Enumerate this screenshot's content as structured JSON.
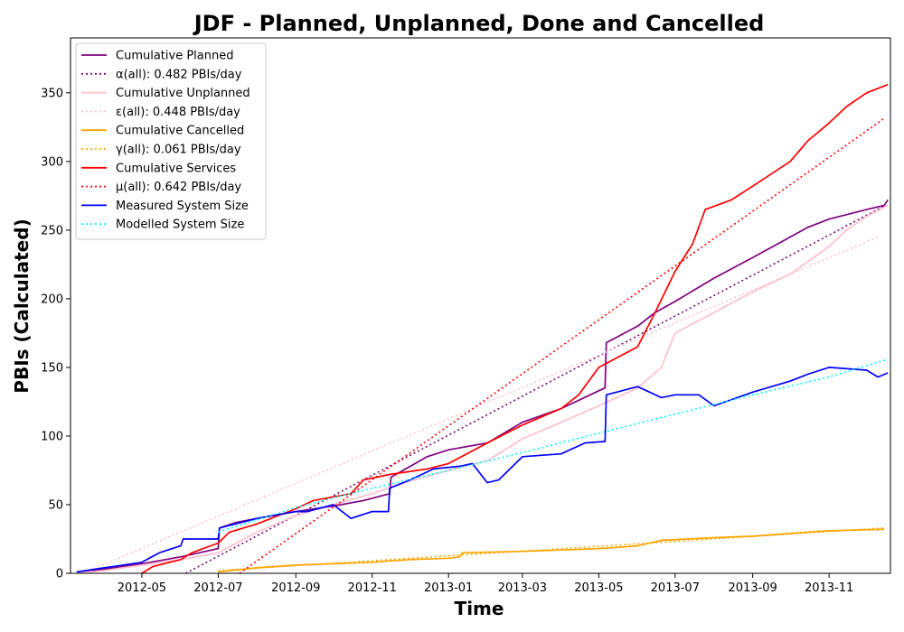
{
  "chart_data": {
    "type": "line",
    "title": "JDF - Planned, Unplanned, Done  and Cancelled",
    "xlabel": "Time",
    "ylabel": "PBIs (Calculated)",
    "xlim": [
      "2012-03-05",
      "2013-12-20"
    ],
    "ylim": [
      0,
      390
    ],
    "x_ticks": [
      "2012-05",
      "2012-07",
      "2012-09",
      "2012-11",
      "2013-01",
      "2013-03",
      "2013-05",
      "2013-07",
      "2013-09",
      "2013-11"
    ],
    "y_ticks": [
      0,
      50,
      100,
      150,
      200,
      250,
      300,
      350
    ],
    "grid": false,
    "legend_position": "top-left",
    "series": [
      {
        "name": "Cumulative Planned",
        "color": "#800080",
        "style": "solid",
        "points": [
          [
            "2012-03-10",
            1
          ],
          [
            "2012-04-01",
            3
          ],
          [
            "2012-05-01",
            7
          ],
          [
            "2012-06-01",
            12
          ],
          [
            "2012-07-01",
            18
          ],
          [
            "2012-07-02",
            33
          ],
          [
            "2012-07-15",
            37
          ],
          [
            "2012-08-01",
            40
          ],
          [
            "2012-09-01",
            45
          ],
          [
            "2012-10-01",
            49
          ],
          [
            "2012-10-25",
            53
          ],
          [
            "2012-11-15",
            58
          ],
          [
            "2012-11-16",
            70
          ],
          [
            "2012-12-15",
            85
          ],
          [
            "2013-01-01",
            90
          ],
          [
            "2013-02-01",
            95
          ],
          [
            "2013-03-01",
            110
          ],
          [
            "2013-04-01",
            120
          ],
          [
            "2013-05-01",
            133
          ],
          [
            "2013-05-06",
            135
          ],
          [
            "2013-05-07",
            168
          ],
          [
            "2013-06-01",
            180
          ],
          [
            "2013-06-15",
            190
          ],
          [
            "2013-07-01",
            198
          ],
          [
            "2013-08-01",
            215
          ],
          [
            "2013-09-01",
            230
          ],
          [
            "2013-10-01",
            245
          ],
          [
            "2013-10-15",
            252
          ],
          [
            "2013-11-01",
            258
          ],
          [
            "2013-12-01",
            265
          ],
          [
            "2013-12-15",
            268
          ],
          [
            "2013-12-18",
            272
          ]
        ]
      },
      {
        "name": "α(all): 0.482 PBIs/day",
        "color": "#800080",
        "style": "dotted",
        "points": [
          [
            "2012-06-05",
            0
          ],
          [
            "2013-12-16",
            268
          ]
        ]
      },
      {
        "name": "Cumulative Unplanned",
        "color": "#ffc0cb",
        "style": "solid",
        "points": [
          [
            "2012-03-10",
            0
          ],
          [
            "2012-04-01",
            2
          ],
          [
            "2012-05-01",
            6
          ],
          [
            "2012-06-01",
            10
          ],
          [
            "2012-07-01",
            15
          ],
          [
            "2012-08-01",
            30
          ],
          [
            "2012-09-01",
            42
          ],
          [
            "2012-10-01",
            50
          ],
          [
            "2012-11-01",
            58
          ],
          [
            "2012-12-01",
            67
          ],
          [
            "2013-01-01",
            75
          ],
          [
            "2013-02-01",
            82
          ],
          [
            "2013-03-01",
            98
          ],
          [
            "2013-04-01",
            110
          ],
          [
            "2013-05-01",
            122
          ],
          [
            "2013-06-01",
            135
          ],
          [
            "2013-06-20",
            150
          ],
          [
            "2013-07-01",
            175
          ],
          [
            "2013-08-01",
            190
          ],
          [
            "2013-09-01",
            205
          ],
          [
            "2013-10-01",
            218
          ],
          [
            "2013-11-01",
            238
          ],
          [
            "2013-11-15",
            250
          ],
          [
            "2013-12-01",
            260
          ],
          [
            "2013-12-18",
            268
          ]
        ]
      },
      {
        "name": "ε(all): 0.448 PBIs/day",
        "color": "#ffc0cb",
        "style": "dotted",
        "points": [
          [
            "2012-03-10",
            -2
          ],
          [
            "2013-12-10",
            245
          ]
        ]
      },
      {
        "name": "Cumulative Cancelled",
        "color": "#ffa500",
        "style": "solid",
        "points": [
          [
            "2012-07-01",
            1
          ],
          [
            "2012-08-01",
            4
          ],
          [
            "2012-09-01",
            6
          ],
          [
            "2012-10-01",
            7
          ],
          [
            "2012-11-01",
            8
          ],
          [
            "2012-12-01",
            10
          ],
          [
            "2013-01-01",
            11
          ],
          [
            "2013-01-10",
            12
          ],
          [
            "2013-01-12",
            15
          ],
          [
            "2013-03-01",
            16
          ],
          [
            "2013-04-01",
            17
          ],
          [
            "2013-05-01",
            18
          ],
          [
            "2013-06-01",
            20
          ],
          [
            "2013-06-20",
            24
          ],
          [
            "2013-08-01",
            26
          ],
          [
            "2013-09-01",
            27
          ],
          [
            "2013-10-01",
            29
          ],
          [
            "2013-10-15",
            30
          ],
          [
            "2013-11-01",
            31
          ],
          [
            "2013-12-15",
            32
          ]
        ]
      },
      {
        "name": "γ(all): 0.061 PBIs/day",
        "color": "#ffa500",
        "style": "dotted",
        "points": [
          [
            "2012-07-01",
            2
          ],
          [
            "2013-12-15",
            33
          ]
        ]
      },
      {
        "name": "Cumulative Services",
        "color": "#ff0000",
        "style": "solid",
        "points": [
          [
            "2012-05-01",
            0
          ],
          [
            "2012-05-10",
            5
          ],
          [
            "2012-06-01",
            10
          ],
          [
            "2012-06-10",
            15
          ],
          [
            "2012-07-01",
            22
          ],
          [
            "2012-07-10",
            30
          ],
          [
            "2012-08-01",
            36
          ],
          [
            "2012-09-01",
            47
          ],
          [
            "2012-09-15",
            53
          ],
          [
            "2012-10-15",
            58
          ],
          [
            "2012-10-25",
            68
          ],
          [
            "2012-11-15",
            72
          ],
          [
            "2012-12-15",
            76
          ],
          [
            "2013-01-01",
            80
          ],
          [
            "2013-02-01",
            95
          ],
          [
            "2013-03-01",
            108
          ],
          [
            "2013-04-01",
            120
          ],
          [
            "2013-04-15",
            130
          ],
          [
            "2013-05-01",
            150
          ],
          [
            "2013-06-01",
            165
          ],
          [
            "2013-06-15",
            190
          ],
          [
            "2013-07-01",
            220
          ],
          [
            "2013-07-15",
            240
          ],
          [
            "2013-07-25",
            265
          ],
          [
            "2013-08-15",
            272
          ],
          [
            "2013-09-01",
            282
          ],
          [
            "2013-10-01",
            300
          ],
          [
            "2013-10-15",
            315
          ],
          [
            "2013-11-01",
            328
          ],
          [
            "2013-11-15",
            340
          ],
          [
            "2013-12-01",
            350
          ],
          [
            "2013-12-18",
            356
          ]
        ]
      },
      {
        "name": "μ(all): 0.642 PBIs/day",
        "color": "#ff0000",
        "style": "dotted",
        "points": [
          [
            "2012-07-18",
            0
          ],
          [
            "2013-12-16",
            332
          ]
        ]
      },
      {
        "name": "Measured System Size",
        "color": "#0000ff",
        "style": "solid",
        "points": [
          [
            "2012-03-10",
            1
          ],
          [
            "2012-04-01",
            4
          ],
          [
            "2012-05-01",
            8
          ],
          [
            "2012-05-15",
            15
          ],
          [
            "2012-06-01",
            20
          ],
          [
            "2012-06-03",
            25
          ],
          [
            "2012-07-01",
            25
          ],
          [
            "2012-07-02",
            33
          ],
          [
            "2012-08-01",
            40
          ],
          [
            "2012-09-01",
            45
          ],
          [
            "2012-09-10",
            45
          ],
          [
            "2012-10-01",
            50
          ],
          [
            "2012-10-15",
            40
          ],
          [
            "2012-11-01",
            45
          ],
          [
            "2012-11-14",
            45
          ],
          [
            "2012-11-15",
            62
          ],
          [
            "2012-12-01",
            68
          ],
          [
            "2012-12-20",
            76
          ],
          [
            "2013-01-10",
            78
          ],
          [
            "2013-01-20",
            80
          ],
          [
            "2013-02-01",
            66
          ],
          [
            "2013-02-10",
            68
          ],
          [
            "2013-03-01",
            85
          ],
          [
            "2013-04-01",
            87
          ],
          [
            "2013-04-20",
            95
          ],
          [
            "2013-05-06",
            96
          ],
          [
            "2013-05-07",
            130
          ],
          [
            "2013-06-01",
            136
          ],
          [
            "2013-06-20",
            128
          ],
          [
            "2013-07-01",
            130
          ],
          [
            "2013-07-20",
            130
          ],
          [
            "2013-08-01",
            122
          ],
          [
            "2013-09-01",
            132
          ],
          [
            "2013-10-01",
            140
          ],
          [
            "2013-10-15",
            145
          ],
          [
            "2013-11-01",
            150
          ],
          [
            "2013-12-01",
            148
          ],
          [
            "2013-12-10",
            143
          ],
          [
            "2013-12-18",
            146
          ]
        ]
      },
      {
        "name": "Modelled System Size",
        "color": "#00ffff",
        "style": "dotted",
        "points": [
          [
            "2012-07-01",
            30
          ],
          [
            "2012-09-01",
            48
          ],
          [
            "2012-11-01",
            62
          ],
          [
            "2013-01-01",
            75
          ],
          [
            "2013-03-01",
            88
          ],
          [
            "2013-05-01",
            102
          ],
          [
            "2013-07-01",
            116
          ],
          [
            "2013-09-01",
            130
          ],
          [
            "2013-11-01",
            143
          ],
          [
            "2013-12-18",
            156
          ]
        ]
      }
    ]
  }
}
